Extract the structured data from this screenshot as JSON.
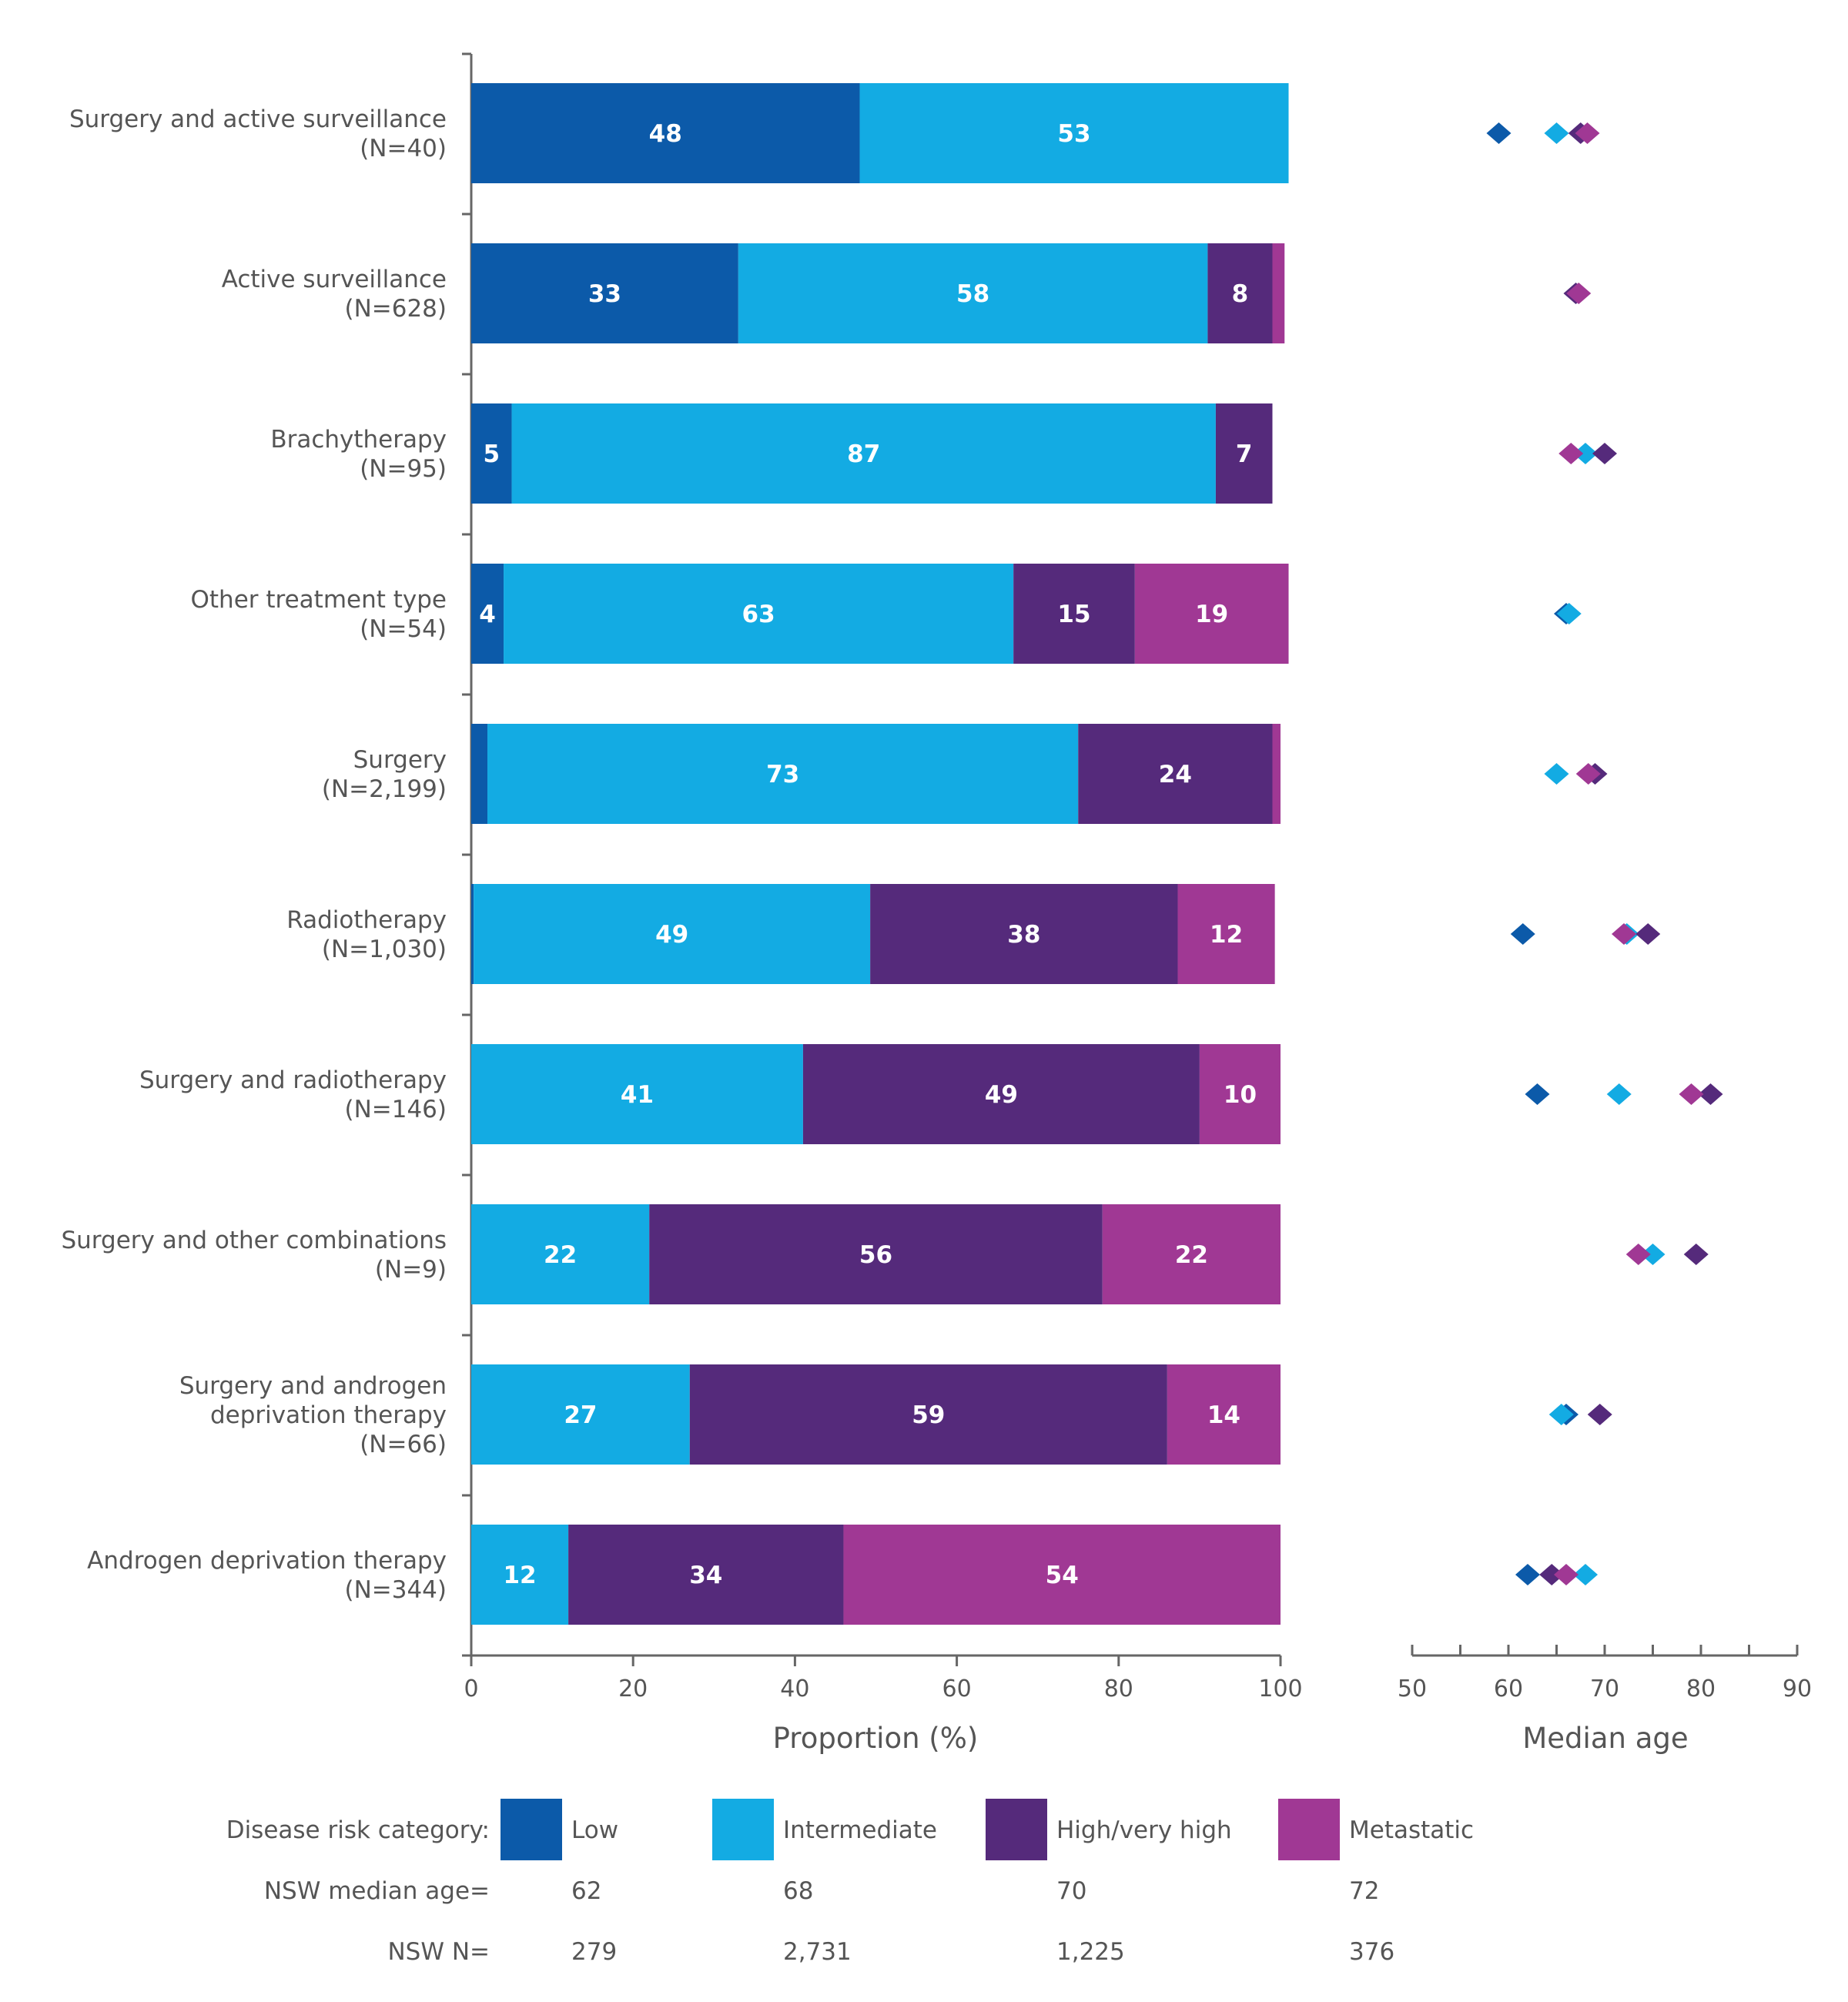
{
  "chart_data": [
    {
      "type": "bar",
      "stacked": true,
      "orientation": "horizontal",
      "categories": [
        [
          "Surgery and active surveillance",
          "(N=40)"
        ],
        [
          "Active surveillance",
          "(N=628)"
        ],
        [
          "Brachytherapy",
          "(N=95)"
        ],
        [
          "Other treatment type",
          "(N=54)"
        ],
        [
          "Surgery",
          "(N=2,199)"
        ],
        [
          "Radiotherapy",
          "(N=1,030)"
        ],
        [
          "Surgery and radiotherapy",
          "(N=146)"
        ],
        [
          "Surgery and other combinations",
          "(N=9)"
        ],
        [
          "Surgery and androgen",
          "deprivation therapy",
          "(N=66)"
        ],
        [
          "Androgen deprivation therapy",
          "(N=344)"
        ]
      ],
      "series": [
        {
          "name": "Low",
          "color": "#0c5aa9",
          "values": [
            48,
            33,
            5,
            4,
            2,
            0.3,
            0,
            0,
            0,
            0
          ],
          "labels": [
            "48",
            "33",
            "5",
            "4",
            "",
            "",
            "",
            "",
            "",
            ""
          ]
        },
        {
          "name": "Intermediate",
          "color": "#13abe3",
          "values": [
            53,
            58,
            87,
            63,
            73,
            49,
            41,
            22,
            27,
            12
          ],
          "labels": [
            "53",
            "58",
            "87",
            "63",
            "73",
            "49",
            "41",
            "22",
            "27",
            "12"
          ]
        },
        {
          "name": "High/very high",
          "color": "#552a7b",
          "values": [
            0,
            8,
            7,
            15,
            24,
            38,
            49,
            56,
            59,
            34
          ],
          "labels": [
            "",
            "8",
            "7",
            "15",
            "24",
            "38",
            "49",
            "56",
            "59",
            "34"
          ]
        },
        {
          "name": "Metastatic",
          "color": "#a03894",
          "values": [
            0,
            1.5,
            0,
            19,
            1,
            12,
            10,
            22,
            14,
            54
          ],
          "labels": [
            "",
            "",
            "",
            "19",
            "",
            "12",
            "10",
            "22",
            "14",
            "54"
          ]
        }
      ],
      "xlabel": "Proportion (%)",
      "xlim": [
        0,
        100
      ],
      "xticks": [
        "0",
        "20",
        "40",
        "60",
        "80",
        "100"
      ],
      "grid": false
    },
    {
      "type": "scatter",
      "marker": "diamond",
      "series": [
        {
          "name": "Low",
          "color": "#0c5aa9",
          "values": [
            59,
            null,
            null,
            66,
            null,
            61.5,
            63,
            null,
            66,
            62
          ]
        },
        {
          "name": "Intermediate",
          "color": "#13abe3",
          "values": [
            65,
            null,
            68,
            66.3,
            65,
            72.3,
            71.5,
            75,
            65.5,
            68
          ]
        },
        {
          "name": "High/very high",
          "color": "#552a7b",
          "values": [
            67.5,
            67,
            70,
            null,
            69,
            74.5,
            81,
            79.5,
            69.5,
            64.5
          ]
        },
        {
          "name": "Metastatic",
          "color": "#a03894",
          "values": [
            68.2,
            67.3,
            66.5,
            null,
            68.3,
            72,
            79,
            73.5,
            null,
            66
          ]
        }
      ],
      "xlabel": "Median age",
      "xlim": [
        50,
        90
      ],
      "xticks": [
        "50",
        "60",
        "70",
        "80",
        "90"
      ],
      "grid": false
    }
  ],
  "legend": {
    "title": "Disease risk category:",
    "items": [
      "Low",
      "Intermediate",
      "High/very high",
      "Metastatic"
    ],
    "colors": [
      "#0c5aa9",
      "#13abe3",
      "#552a7b",
      "#a03894"
    ],
    "median_label": "NSW median age=",
    "medians": [
      "62",
      "68",
      "70",
      "72"
    ],
    "n_label": "NSW N=",
    "ns": [
      "279",
      "2,731",
      "1,225",
      "376"
    ]
  }
}
